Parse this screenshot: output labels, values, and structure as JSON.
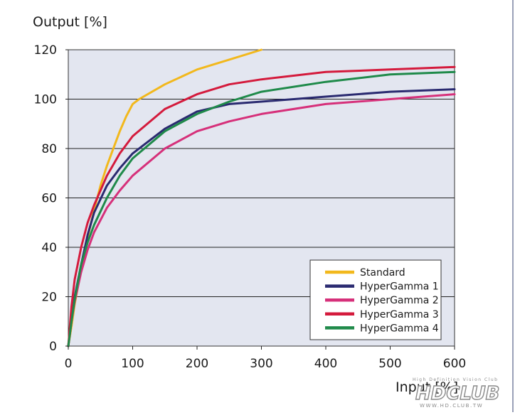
{
  "chart_data": {
    "type": "line",
    "title": "",
    "xlabel": "Input [%]",
    "ylabel": "Output [%]",
    "xlim": [
      0,
      600
    ],
    "ylim": [
      0,
      120
    ],
    "x_ticks": [
      0,
      100,
      200,
      300,
      400,
      500,
      600
    ],
    "y_ticks": [
      0,
      20,
      40,
      60,
      80,
      100,
      120
    ],
    "grid": "horizontal",
    "legend_position": "bottom-right",
    "plot_background": "#e3e6f0",
    "series": [
      {
        "name": "Standard",
        "color": "#f2b81c",
        "x": [
          0,
          5,
          10,
          20,
          30,
          40,
          50,
          60,
          70,
          80,
          90,
          100,
          110,
          150,
          200,
          250,
          300
        ],
        "y": [
          0,
          8,
          17,
          31,
          44,
          55,
          65,
          73,
          80,
          87,
          93,
          98,
          100,
          106,
          112,
          116,
          120
        ]
      },
      {
        "name": "HyperGamma 1",
        "color": "#2a2a70",
        "x": [
          0,
          5,
          10,
          20,
          30,
          40,
          60,
          80,
          100,
          150,
          200,
          250,
          300,
          400,
          500,
          600
        ],
        "y": [
          0,
          10,
          20,
          33,
          45,
          54,
          65,
          72,
          78,
          88,
          95,
          98,
          99,
          101,
          103,
          104
        ]
      },
      {
        "name": "HyperGamma 2",
        "color": "#d6307a",
        "x": [
          0,
          5,
          10,
          20,
          30,
          40,
          60,
          80,
          100,
          150,
          200,
          250,
          300,
          400,
          500,
          600
        ],
        "y": [
          0,
          10,
          18,
          30,
          39,
          46,
          56,
          63,
          69,
          80,
          87,
          91,
          94,
          98,
          100,
          102
        ]
      },
      {
        "name": "HyperGamma 3",
        "color": "#d41a3c",
        "x": [
          0,
          5,
          10,
          20,
          30,
          40,
          60,
          80,
          100,
          150,
          200,
          250,
          300,
          400,
          500,
          600
        ],
        "y": [
          0,
          16,
          27,
          40,
          50,
          57,
          69,
          78,
          85,
          96,
          102,
          106,
          108,
          111,
          112,
          113
        ]
      },
      {
        "name": "HyperGamma 4",
        "color": "#1f8a4a",
        "x": [
          0,
          5,
          10,
          20,
          30,
          40,
          60,
          80,
          100,
          150,
          200,
          250,
          300,
          400,
          500,
          600
        ],
        "y": [
          0,
          10,
          19,
          33,
          42,
          49,
          60,
          69,
          76,
          87,
          94,
          99,
          103,
          107,
          110,
          111
        ]
      }
    ]
  },
  "watermark": {
    "tagline": "High Definition Vision Club",
    "logo": "HDCLUB",
    "url": "WWW.HD.CLUB.TW",
    "color": "#8a8a8a"
  }
}
